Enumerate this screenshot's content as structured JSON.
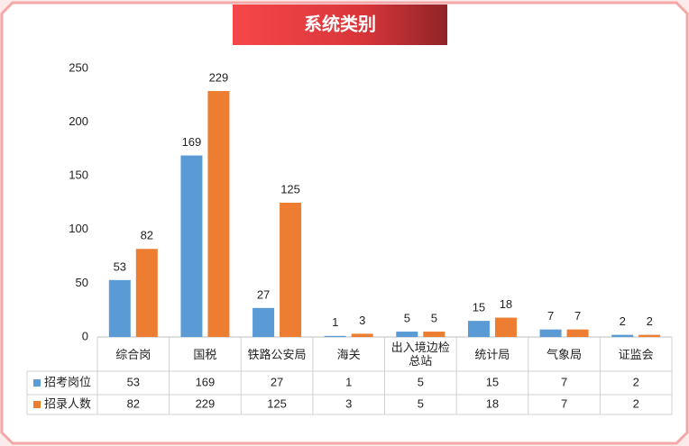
{
  "chart_data": {
    "type": "bar",
    "title": "系统类别",
    "categories": [
      "综合岗",
      "国税",
      "铁路公安局",
      "海关",
      "出入境边检总站",
      "统计局",
      "气象局",
      "证监会"
    ],
    "series": [
      {
        "name": "招考岗位",
        "color": "#5b9bd5",
        "values": [
          53,
          169,
          27,
          1,
          5,
          15,
          7,
          2
        ]
      },
      {
        "name": "招录人数",
        "color": "#ed7d31",
        "values": [
          82,
          229,
          125,
          3,
          5,
          18,
          7,
          2
        ]
      }
    ],
    "ylim": [
      0,
      250
    ],
    "yticks": [
      0,
      50,
      100,
      150,
      200,
      250
    ],
    "grid": false,
    "legend": "table"
  }
}
